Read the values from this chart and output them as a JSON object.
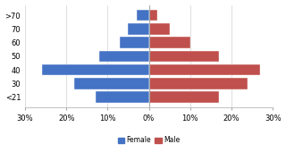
{
  "age_groups": [
    "<21",
    "30",
    "40",
    "50",
    "60",
    "70",
    ">70"
  ],
  "female_values": [
    -13,
    -18,
    -26,
    -12,
    -7,
    -5,
    -3
  ],
  "male_values": [
    17,
    24,
    27,
    17,
    10,
    5,
    2
  ],
  "female_color": "#4472C4",
  "male_color": "#C0504D",
  "background_color": "#FFFFFF",
  "plot_bg_color": "#FFFFFF",
  "xlim": [
    -30,
    30
  ],
  "xticks": [
    -30,
    -20,
    -10,
    0,
    10,
    20,
    30
  ],
  "xtick_labels": [
    "30%",
    "20%",
    "10%",
    "0%",
    "10%",
    "20%",
    "30%"
  ],
  "legend_female": "Female",
  "legend_male": "Male"
}
